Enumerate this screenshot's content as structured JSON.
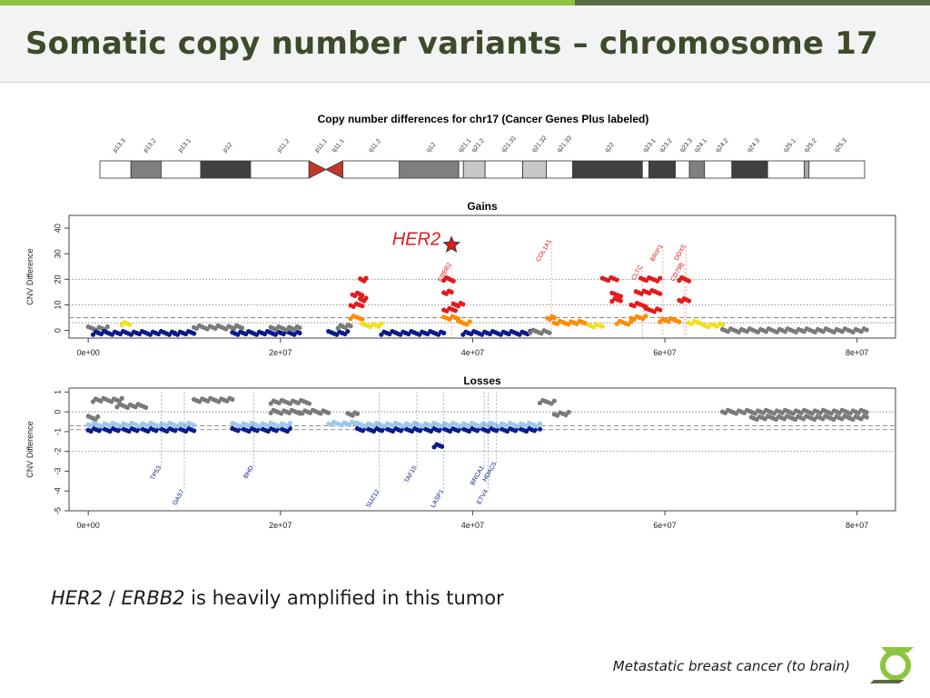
{
  "slide": {
    "title": "Somatic copy number variants – chromosome 17",
    "caption_gene1": "HER2",
    "caption_sep": " / ",
    "caption_gene2": "ERBB2",
    "caption_rest": " is heavily amplified in this tumor",
    "footnote": "Metastatic breast cancer (to brain)",
    "highlight_label": "HER2"
  },
  "colors": {
    "accent_green": "#8cc63f",
    "accent_dark": "#5a6a43",
    "title_text": "#3d4a2b",
    "gain_red": "#e31a1c",
    "gain_orange": "#ff8c00",
    "gain_yellow": "#f0e020",
    "loss_navy": "#0a1a8c",
    "loss_light": "#9ec9e8",
    "neutral_grey": "#7a7a7a",
    "centromere": "#c0392b"
  },
  "chart_data": [
    {
      "type": "ideogram",
      "title": "Copy number differences for chr17 (Cancer Genes Plus labeled)",
      "bands": [
        {
          "name": "p13.3",
          "start": 0,
          "end": 3.3,
          "stain": "gneg"
        },
        {
          "name": "p13.2",
          "start": 3.3,
          "end": 6.5,
          "stain": "gpos75"
        },
        {
          "name": "p13.1",
          "start": 6.5,
          "end": 10.7,
          "stain": "gneg"
        },
        {
          "name": "p12",
          "start": 10.7,
          "end": 16.0,
          "stain": "gpos100"
        },
        {
          "name": "p11.2",
          "start": 16.0,
          "end": 22.2,
          "stain": "gneg"
        },
        {
          "name": "p11.1",
          "start": 22.2,
          "end": 24.0,
          "stain": "acen"
        },
        {
          "name": "q11.1",
          "start": 24.0,
          "end": 25.8,
          "stain": "acen"
        },
        {
          "name": "q11.2",
          "start": 25.8,
          "end": 31.8,
          "stain": "gneg"
        },
        {
          "name": "q12",
          "start": 31.8,
          "end": 38.1,
          "stain": "gpos75"
        },
        {
          "name": "q21.1",
          "start": 38.1,
          "end": 38.6,
          "stain": "gneg"
        },
        {
          "name": "q21.2",
          "start": 38.6,
          "end": 40.9,
          "stain": "gpos25"
        },
        {
          "name": "q21.31",
          "start": 40.9,
          "end": 44.9,
          "stain": "gneg"
        },
        {
          "name": "q21.32",
          "start": 44.9,
          "end": 47.4,
          "stain": "gpos25"
        },
        {
          "name": "q21.33",
          "start": 47.4,
          "end": 50.2,
          "stain": "gneg"
        },
        {
          "name": "q22",
          "start": 50.2,
          "end": 57.6,
          "stain": "gpos100"
        },
        {
          "name": "q23.1",
          "start": 57.6,
          "end": 58.3,
          "stain": "gneg"
        },
        {
          "name": "q23.2",
          "start": 58.3,
          "end": 61.1,
          "stain": "gpos100"
        },
        {
          "name": "q23.3",
          "start": 61.1,
          "end": 62.6,
          "stain": "gneg"
        },
        {
          "name": "q24.1",
          "start": 62.6,
          "end": 64.2,
          "stain": "gpos75"
        },
        {
          "name": "q24.2",
          "start": 64.2,
          "end": 67.1,
          "stain": "gneg"
        },
        {
          "name": "q24.3",
          "start": 67.1,
          "end": 70.9,
          "stain": "gpos100"
        },
        {
          "name": "q25.1",
          "start": 70.9,
          "end": 74.8,
          "stain": "gneg"
        },
        {
          "name": "q25.2",
          "start": 74.8,
          "end": 75.3,
          "stain": "gpos50"
        },
        {
          "name": "q25.3",
          "start": 75.3,
          "end": 81.2,
          "stain": "gneg"
        }
      ]
    },
    {
      "type": "scatter",
      "title": "Gains",
      "ylabel": "CNV Difference",
      "xlim": [
        -2000000,
        84000000
      ],
      "ylim": [
        -3,
        45
      ],
      "x_ticks": [
        {
          "value": 0,
          "label": "0e+00"
        },
        {
          "value": 20000000,
          "label": "2e+07"
        },
        {
          "value": 40000000,
          "label": "4e+07"
        },
        {
          "value": 60000000,
          "label": "6e+07"
        },
        {
          "value": 80000000,
          "label": "8e+07"
        }
      ],
      "y_ticks": [
        0,
        10,
        20,
        30,
        40
      ],
      "reference_lines": [
        {
          "y": 20,
          "style": "dotted"
        },
        {
          "y": 10,
          "style": "dotted"
        },
        {
          "y": 5,
          "style": "dashed"
        },
        {
          "y": 3,
          "style": "dotted"
        }
      ],
      "segments": [
        {
          "x0": 0,
          "x1": 2000000,
          "y": 0.8,
          "color": "grey"
        },
        {
          "x0": 500000,
          "x1": 9000000,
          "y": -1,
          "color": "navy"
        },
        {
          "x0": 3500000,
          "x1": 4300000,
          "y": 2.5,
          "color": "yellow"
        },
        {
          "x0": 9000000,
          "x1": 11000000,
          "y": -1,
          "color": "navy"
        },
        {
          "x0": 11000000,
          "x1": 16000000,
          "y": 1.2,
          "color": "grey"
        },
        {
          "x0": 15000000,
          "x1": 22000000,
          "y": -1,
          "color": "navy"
        },
        {
          "x0": 19000000,
          "x1": 22000000,
          "y": 0.8,
          "color": "grey"
        },
        {
          "x0": 25000000,
          "x1": 27000000,
          "y": -1,
          "color": "navy"
        },
        {
          "x0": 26000000,
          "x1": 27300000,
          "y": 1.5,
          "color": "grey"
        },
        {
          "x0": 27300000,
          "x1": 28500000,
          "y": 5,
          "color": "orange"
        },
        {
          "x0": 27300000,
          "x1": 28500000,
          "y": 10,
          "color": "red"
        },
        {
          "x0": 27500000,
          "x1": 28500000,
          "y": 14,
          "color": "red"
        },
        {
          "x0": 28300000,
          "x1": 28900000,
          "y": 20,
          "color": "red"
        },
        {
          "x0": 28300000,
          "x1": 28900000,
          "y": 12,
          "color": "red"
        },
        {
          "x0": 28500000,
          "x1": 30500000,
          "y": 2,
          "color": "yellow"
        },
        {
          "x0": 30500000,
          "x1": 37000000,
          "y": -1,
          "color": "navy"
        },
        {
          "x0": 37000000,
          "x1": 38000000,
          "y": 20,
          "color": "red"
        },
        {
          "x0": 37000000,
          "x1": 37800000,
          "y": 15,
          "color": "red"
        },
        {
          "x0": 37000000,
          "x1": 38200000,
          "y": 8,
          "color": "red"
        },
        {
          "x0": 37000000,
          "x1": 38500000,
          "y": 5,
          "color": "orange"
        },
        {
          "x0": 38000000,
          "x1": 39000000,
          "y": 10,
          "color": "red"
        },
        {
          "x0": 38500000,
          "x1": 39700000,
          "y": 3,
          "color": "orange"
        },
        {
          "x0": 39000000,
          "x1": 46000000,
          "y": -1,
          "color": "navy"
        },
        {
          "x0": 46000000,
          "x1": 48000000,
          "y": -0.5,
          "color": "grey"
        },
        {
          "x0": 47800000,
          "x1": 48500000,
          "y": 5,
          "color": "orange"
        },
        {
          "x0": 48500000,
          "x1": 52000000,
          "y": 3,
          "color": "orange"
        },
        {
          "x0": 52000000,
          "x1": 53500000,
          "y": 2,
          "color": "yellow"
        },
        {
          "x0": 53500000,
          "x1": 55000000,
          "y": 20,
          "color": "red"
        },
        {
          "x0": 54500000,
          "x1": 55400000,
          "y": 14,
          "color": "red"
        },
        {
          "x0": 54500000,
          "x1": 55400000,
          "y": 12,
          "color": "red"
        },
        {
          "x0": 55000000,
          "x1": 56500000,
          "y": 3,
          "color": "orange"
        },
        {
          "x0": 56500000,
          "x1": 58000000,
          "y": 5,
          "color": "orange"
        },
        {
          "x0": 56500000,
          "x1": 58000000,
          "y": 10,
          "color": "red"
        },
        {
          "x0": 57000000,
          "x1": 59500000,
          "y": 15,
          "color": "red"
        },
        {
          "x0": 57500000,
          "x1": 59500000,
          "y": 20,
          "color": "red"
        },
        {
          "x0": 58000000,
          "x1": 59500000,
          "y": 8,
          "color": "red"
        },
        {
          "x0": 59500000,
          "x1": 61500000,
          "y": 4,
          "color": "orange"
        },
        {
          "x0": 61500000,
          "x1": 62500000,
          "y": 20,
          "color": "red"
        },
        {
          "x0": 61500000,
          "x1": 62500000,
          "y": 12,
          "color": "red"
        },
        {
          "x0": 62500000,
          "x1": 64000000,
          "y": 3,
          "color": "yellow"
        },
        {
          "x0": 64000000,
          "x1": 66000000,
          "y": 2,
          "color": "yellow"
        },
        {
          "x0": 66000000,
          "x1": 81000000,
          "y": 0,
          "color": "grey"
        }
      ],
      "gene_labels": [
        {
          "gene": "ERBB2",
          "x": 37800000,
          "y": 26
        },
        {
          "gene": "COL1A1",
          "x": 48200000,
          "y": 35
        },
        {
          "gene": "CLTC",
          "x": 57700000,
          "y": 25
        },
        {
          "gene": "BRIP1",
          "x": 59800000,
          "y": 33
        },
        {
          "gene": "DDX5",
          "x": 62200000,
          "y": 33
        },
        {
          "gene": "CD79B",
          "x": 62000000,
          "y": 26
        }
      ],
      "highlight": {
        "label": "HER2",
        "x": 37800000,
        "y": 32
      }
    },
    {
      "type": "scatter",
      "title": "Losses",
      "ylabel": "CNV Difference",
      "xlim": [
        -2000000,
        84000000
      ],
      "ylim": [
        -5,
        1.2
      ],
      "x_ticks": [
        {
          "value": 0,
          "label": "0e+00"
        },
        {
          "value": 20000000,
          "label": "2e+07"
        },
        {
          "value": 40000000,
          "label": "4e+07"
        },
        {
          "value": 60000000,
          "label": "6e+07"
        },
        {
          "value": 80000000,
          "label": "8e+07"
        }
      ],
      "y_ticks": [
        1,
        0,
        -1,
        -2,
        -3,
        -4,
        -5
      ],
      "reference_lines": [
        {
          "y": 0,
          "style": "dotted"
        },
        {
          "y": -0.7,
          "style": "dashed"
        },
        {
          "y": -0.9,
          "style": "dashed"
        },
        {
          "y": -2,
          "style": "dotted"
        }
      ],
      "segments": [
        {
          "x0": 0,
          "x1": 1000000,
          "y": -0.3,
          "color": "grey"
        },
        {
          "x0": 500000,
          "x1": 3500000,
          "y": 0.6,
          "color": "grey"
        },
        {
          "x0": 3000000,
          "x1": 6000000,
          "y": 0.3,
          "color": "grey"
        },
        {
          "x0": 0,
          "x1": 11000000,
          "y": -0.9,
          "color": "navy"
        },
        {
          "x0": 0,
          "x1": 11000000,
          "y": -0.65,
          "color": "light"
        },
        {
          "x0": 11000000,
          "x1": 15000000,
          "y": 0.6,
          "color": "grey"
        },
        {
          "x0": 15000000,
          "x1": 21000000,
          "y": -0.9,
          "color": "navy"
        },
        {
          "x0": 15000000,
          "x1": 21000000,
          "y": -0.65,
          "color": "light"
        },
        {
          "x0": 19000000,
          "x1": 23000000,
          "y": 0.5,
          "color": "grey"
        },
        {
          "x0": 19000000,
          "x1": 22000000,
          "y": 0,
          "color": "grey"
        },
        {
          "x0": 22000000,
          "x1": 25000000,
          "y": 0,
          "color": "grey"
        },
        {
          "x0": 25000000,
          "x1": 28000000,
          "y": -0.6,
          "color": "light"
        },
        {
          "x0": 27000000,
          "x1": 28000000,
          "y": -0.1,
          "color": "grey"
        },
        {
          "x0": 28000000,
          "x1": 47000000,
          "y": -0.9,
          "color": "navy"
        },
        {
          "x0": 28000000,
          "x1": 47000000,
          "y": -0.65,
          "color": "light"
        },
        {
          "x0": 36000000,
          "x1": 36800000,
          "y": -1.7,
          "color": "navy"
        },
        {
          "x0": 47000000,
          "x1": 48500000,
          "y": 0.5,
          "color": "grey"
        },
        {
          "x0": 48500000,
          "x1": 50000000,
          "y": -0.1,
          "color": "grey"
        },
        {
          "x0": 66000000,
          "x1": 81000000,
          "y": 0,
          "color": "grey"
        },
        {
          "x0": 69000000,
          "x1": 81000000,
          "y": -0.3,
          "color": "grey"
        }
      ],
      "gene_labels": [
        {
          "gene": "TP53",
          "x": 7600000,
          "y": -2.8
        },
        {
          "gene": "GAS7",
          "x": 10000000,
          "y": -4.0
        },
        {
          "gene": "BHD",
          "x": 17200000,
          "y": -2.8
        },
        {
          "gene": "SUZ12",
          "x": 30300000,
          "y": -4.0
        },
        {
          "gene": "TAF15",
          "x": 34200000,
          "y": -2.8
        },
        {
          "gene": "LASP1",
          "x": 37000000,
          "y": -4.0
        },
        {
          "gene": "BRCA1",
          "x": 41200000,
          "y": -2.8
        },
        {
          "gene": "HDAC5",
          "x": 42500000,
          "y": -2.6
        },
        {
          "gene": "ETV4",
          "x": 41600000,
          "y": -4.0
        }
      ]
    }
  ]
}
